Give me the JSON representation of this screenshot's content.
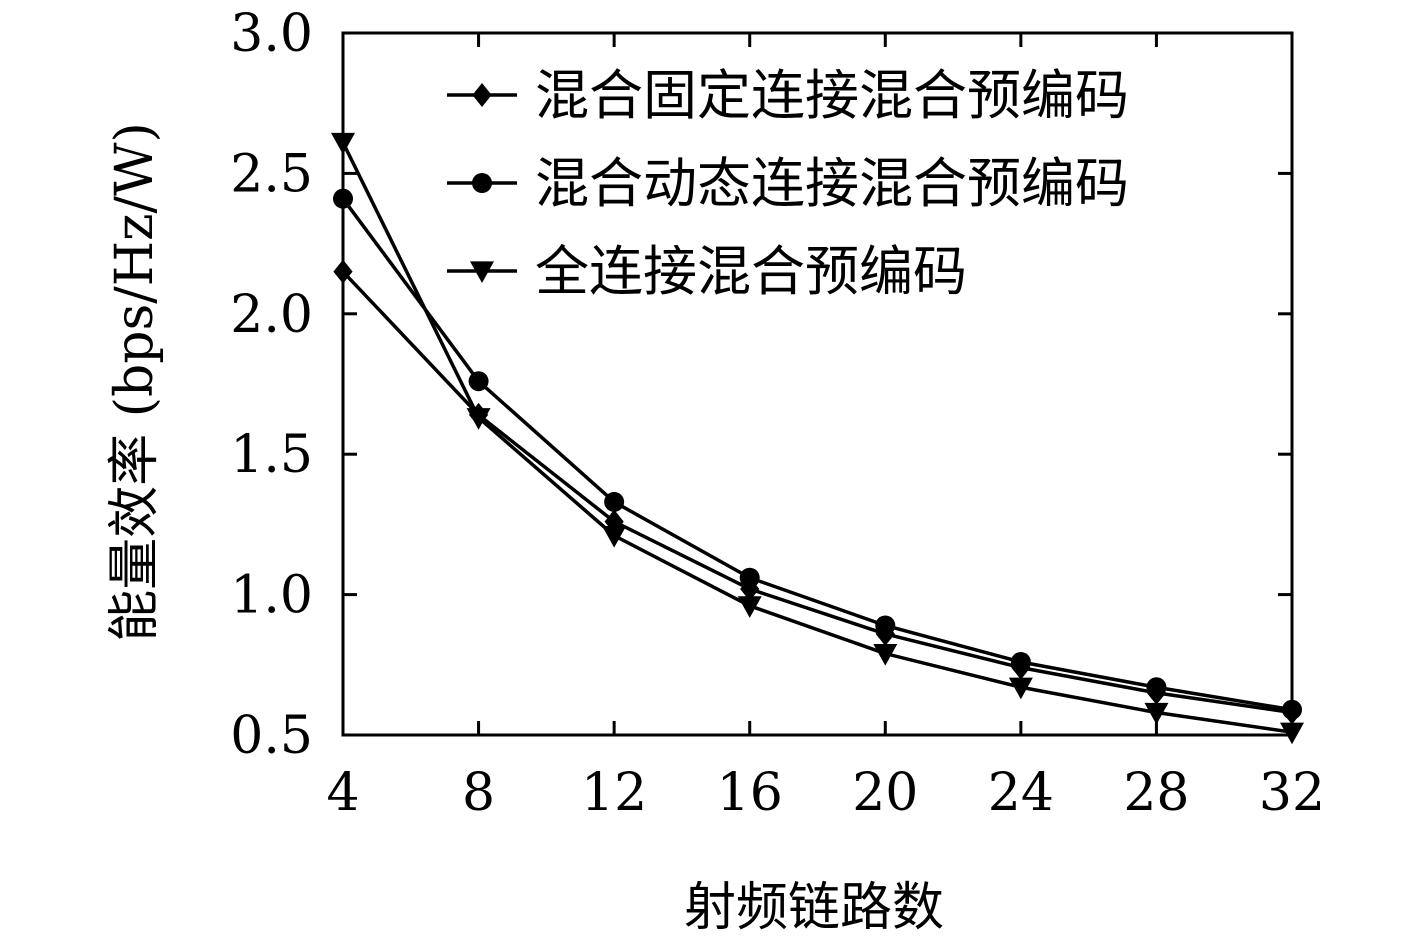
{
  "chart_data": {
    "type": "line",
    "title": "",
    "xlabel": "射频链路数",
    "ylabel": "能量效率 (bps/Hz/W)",
    "x": [
      4,
      8,
      12,
      16,
      20,
      24,
      28,
      32
    ],
    "xticks": [
      "4",
      "8",
      "12",
      "16",
      "20",
      "24",
      "28",
      "32"
    ],
    "yticks": [
      "0.5",
      "1.0",
      "1.5",
      "2.0",
      "2.5",
      "3.0"
    ],
    "xlim": [
      4,
      32
    ],
    "ylim": [
      0.5,
      3.0
    ],
    "grid": false,
    "legend_position": "top-right",
    "series": [
      {
        "name": "混合固定连接混合预编码",
        "marker": "diamond",
        "values": [
          2.15,
          1.64,
          1.26,
          1.02,
          0.86,
          0.74,
          0.65,
          0.58
        ]
      },
      {
        "name": "混合动态连接混合预编码",
        "marker": "circle",
        "values": [
          2.41,
          1.76,
          1.33,
          1.06,
          0.89,
          0.76,
          0.67,
          0.59
        ]
      },
      {
        "name": "全连接混合预编码",
        "marker": "triangle-down",
        "values": [
          2.61,
          1.63,
          1.21,
          0.96,
          0.79,
          0.67,
          0.58,
          0.51
        ]
      }
    ]
  }
}
